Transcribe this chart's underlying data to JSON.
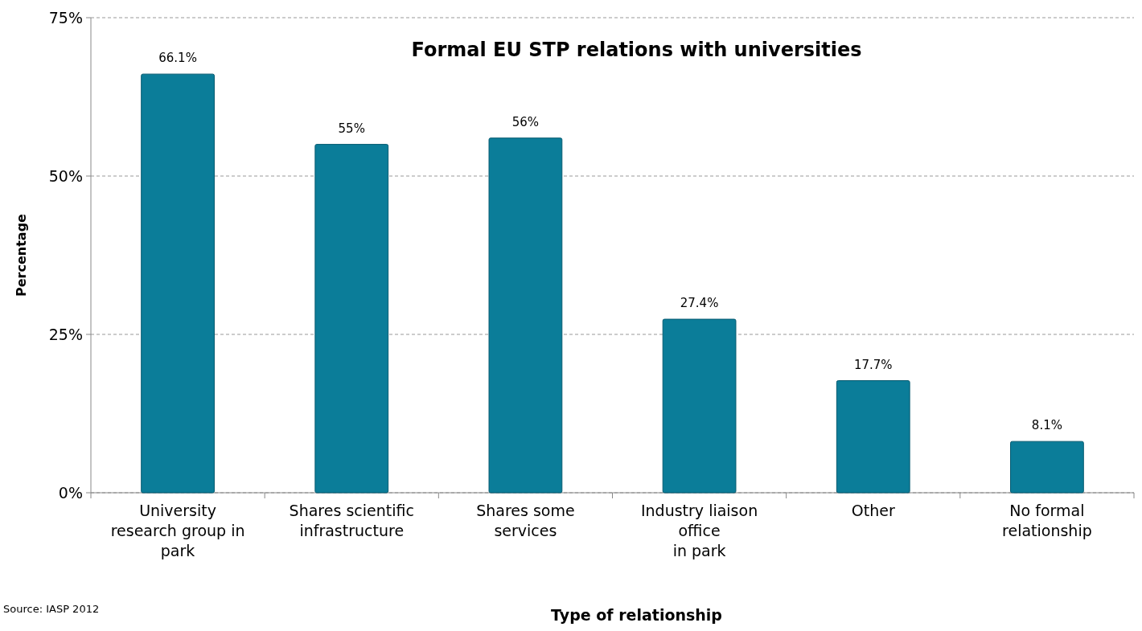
{
  "chart_data": {
    "type": "bar",
    "title": "Formal EU STP relations with universities",
    "xlabel": "Type of relationship",
    "ylabel": "Percentage",
    "categories": [
      "University\nresearch group in\npark",
      "Shares scientific\ninfrastructure",
      "Shares some\nservices",
      "Industry liaison\noffice\nin park",
      "Other",
      "No formal\nrelationship"
    ],
    "values": [
      66.1,
      55,
      56,
      27.4,
      17.7,
      8.1
    ],
    "value_labels": [
      "66.1%",
      "55%",
      "56%",
      "27.4%",
      "17.7%",
      "8.1%"
    ],
    "color": "#0b7d99",
    "ylim": [
      0,
      75
    ],
    "yticks": [
      {
        "value": 0,
        "label": "0%"
      },
      {
        "value": 25,
        "label": "25%"
      },
      {
        "value": 50,
        "label": "50%"
      },
      {
        "value": 75,
        "label": "75%"
      }
    ],
    "grid": "y",
    "annotations": [
      "Source: IASP 2012"
    ]
  }
}
